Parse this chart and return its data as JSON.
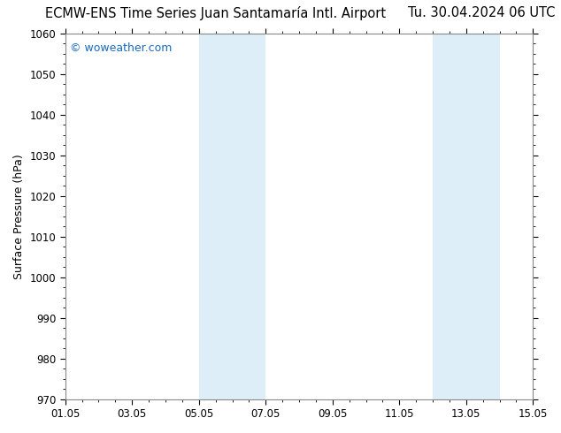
{
  "title_left": "ECMW-ENS Time Series Juan Santamaría Intl. Airport",
  "title_right": "Tu. 30.04.2024 06 UTC",
  "ylabel": "Surface Pressure (hPa)",
  "bg_color": "#ffffff",
  "plot_bg_color": "#ffffff",
  "ylim": [
    970,
    1060
  ],
  "yticks": [
    970,
    980,
    990,
    1000,
    1010,
    1020,
    1030,
    1040,
    1050,
    1060
  ],
  "xmin": 0,
  "xmax": 14,
  "xtick_labels": [
    "01.05",
    "03.05",
    "05.05",
    "07.05",
    "09.05",
    "11.05",
    "13.05",
    "15.05"
  ],
  "xtick_positions": [
    0,
    2,
    4,
    6,
    8,
    10,
    12,
    14
  ],
  "shade_bands": [
    {
      "x_start": 4,
      "x_end": 5,
      "color": "#ddeef8"
    },
    {
      "x_start": 5,
      "x_end": 6,
      "color": "#ddeef8"
    },
    {
      "x_start": 11,
      "x_end": 12,
      "color": "#ddeef8"
    },
    {
      "x_start": 12,
      "x_end": 13,
      "color": "#ddeef8"
    }
  ],
  "watermark_text": "© woweather.com",
  "watermark_color": "#1a6bbf",
  "title_fontsize": 10.5,
  "axis_fontsize": 9,
  "tick_fontsize": 8.5,
  "watermark_fontsize": 9,
  "spine_color": "#888888"
}
